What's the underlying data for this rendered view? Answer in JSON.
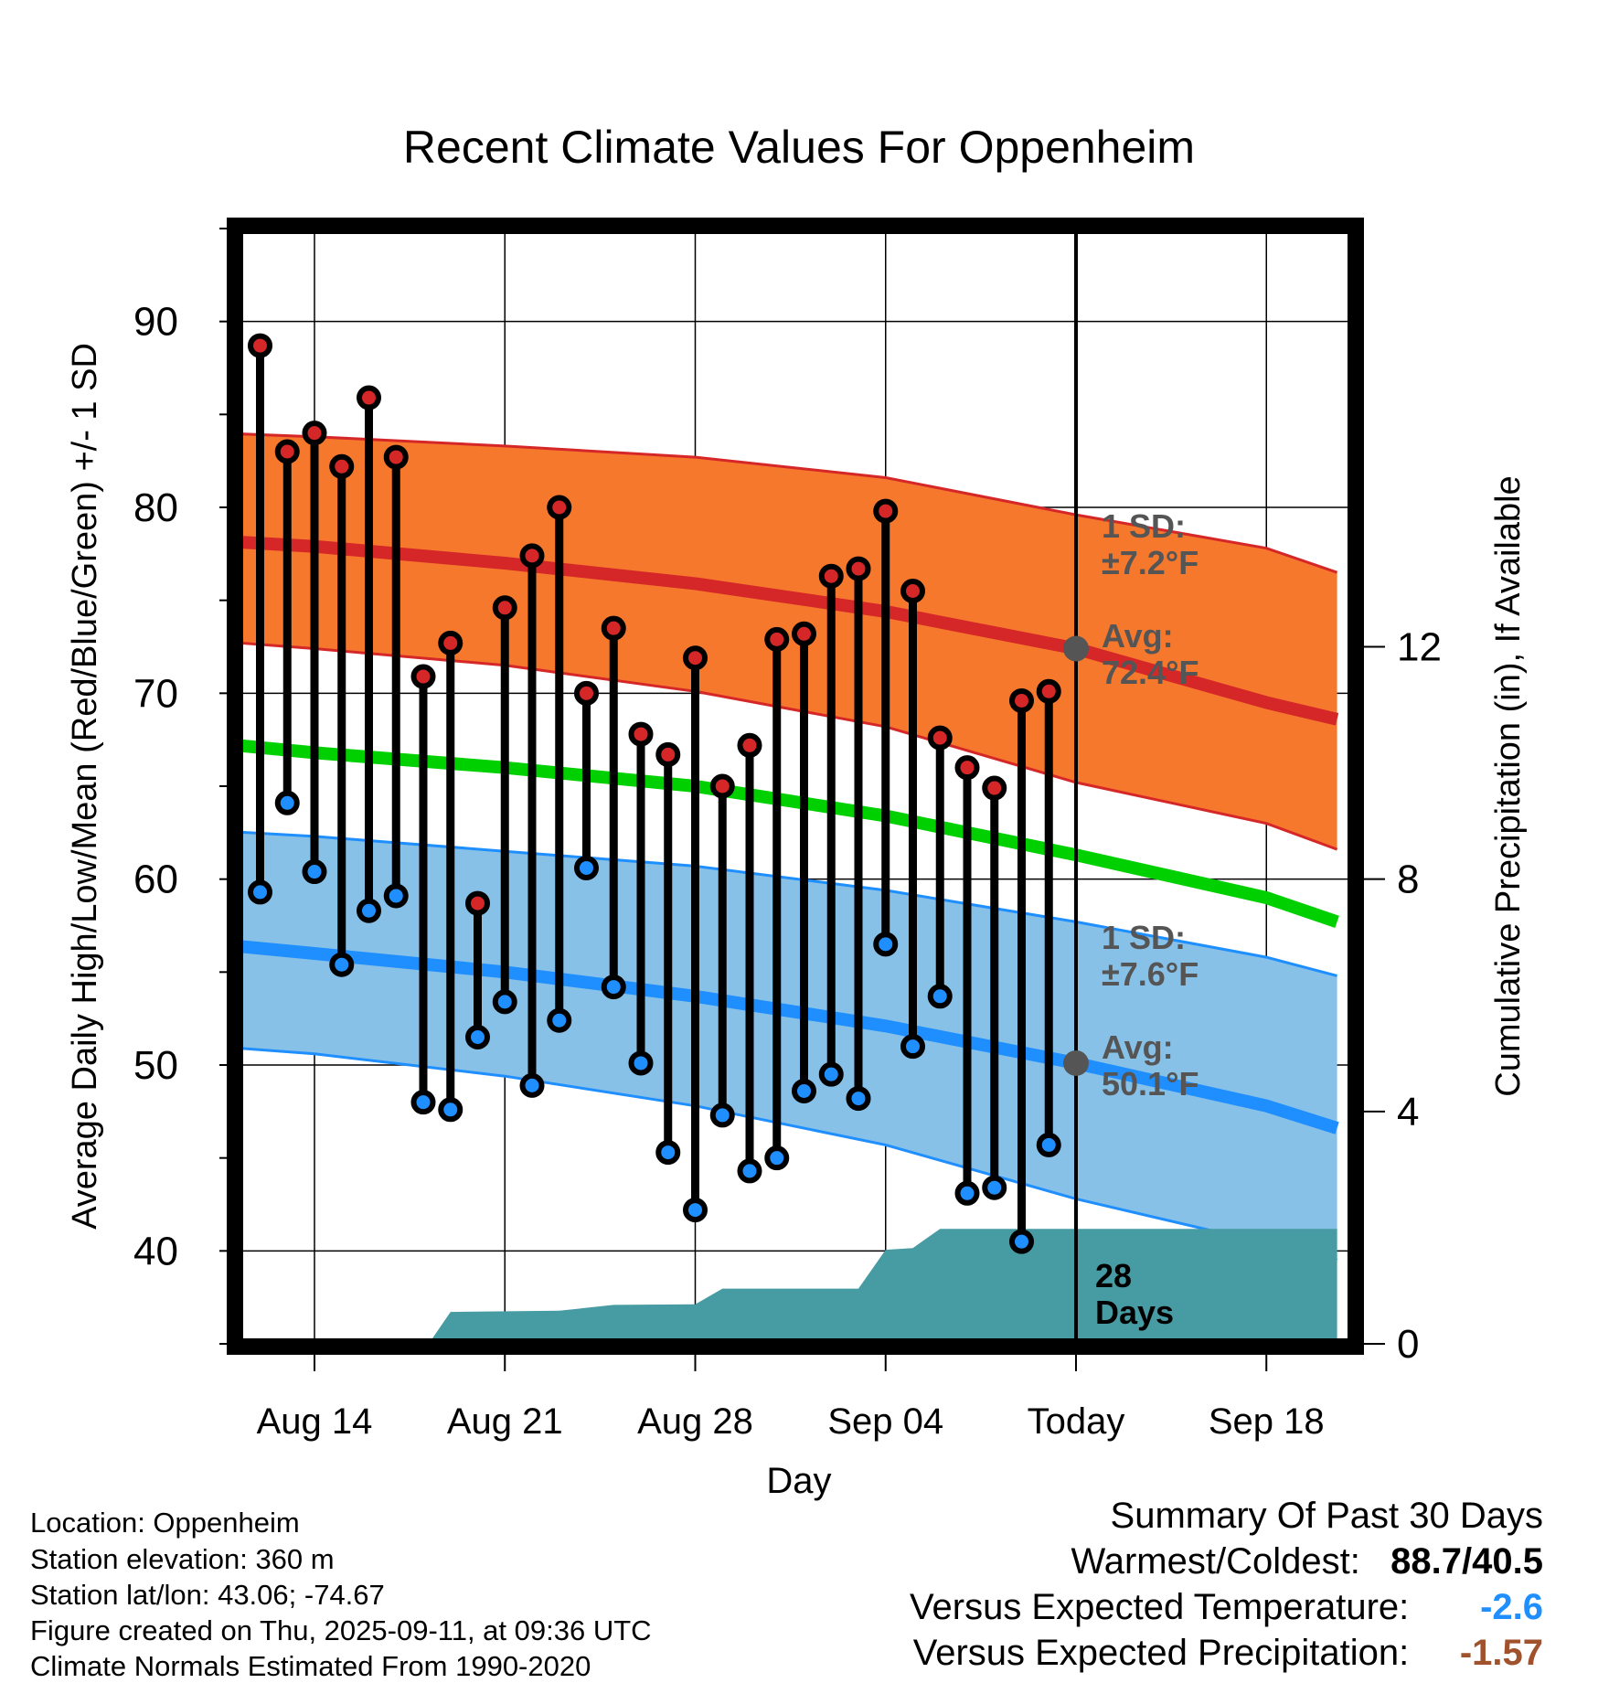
{
  "page": {
    "title": "Recent Climate Values For Oppenheim",
    "x_axis_label": "Day",
    "y_axis_left_label": "Average Daily High/Low/Mean (Red/Blue/Green) +/- 1 SD",
    "y_axis_right_label": "Cumulative Precipitation (in), If Available"
  },
  "info": {
    "location": "Location: Oppenheim",
    "elevation": "Station elevation: 360 m",
    "latlon": "Station lat/lon: 43.06; -74.67",
    "created": "Figure created on Thu, 2025-09-11, at 09:36 UTC",
    "normals": "Climate Normals Estimated From 1990-2020"
  },
  "summary": {
    "heading": "Summary Of Past 30 Days",
    "warm_cold_label": "Warmest/Coldest:",
    "warm_cold_value": "88.7/40.5",
    "temp_label": "Versus Expected Temperature:",
    "temp_value": "-2.6",
    "temp_color": "#1f8fff",
    "precip_label": "Versus Expected Precipitation:",
    "precip_value": "-1.57",
    "precip_color": "#a0522d"
  },
  "chart_data": {
    "type": "line",
    "x_range_days": [
      -32,
      7
    ],
    "x_ticks": [
      {
        "day": -28,
        "label": "Aug 14"
      },
      {
        "day": -21,
        "label": "Aug 21"
      },
      {
        "day": -14,
        "label": "Aug 28"
      },
      {
        "day": -7,
        "label": "Sep 04"
      },
      {
        "day": 0,
        "label": "Today"
      },
      {
        "day": 7,
        "label": "Sep 18"
      }
    ],
    "ylim_left": [
      35,
      95
    ],
    "y_ticks_left": [
      40,
      50,
      60,
      70,
      80,
      90
    ],
    "ylim_right": [
      0,
      19.2
    ],
    "y_ticks_right": [
      0,
      4,
      8,
      12
    ],
    "grid": true,
    "today_day": 0,
    "daily_high": [
      {
        "day": -30,
        "value": 88.7
      },
      {
        "day": -29,
        "value": 83.0
      },
      {
        "day": -28,
        "value": 84.0
      },
      {
        "day": -27,
        "value": 82.2
      },
      {
        "day": -26,
        "value": 85.9
      },
      {
        "day": -25,
        "value": 82.7
      },
      {
        "day": -24,
        "value": 70.9
      },
      {
        "day": -23,
        "value": 72.7
      },
      {
        "day": -22,
        "value": 58.7
      },
      {
        "day": -21,
        "value": 74.6
      },
      {
        "day": -20,
        "value": 77.4
      },
      {
        "day": -19,
        "value": 80.0
      },
      {
        "day": -18,
        "value": 70.0
      },
      {
        "day": -17,
        "value": 73.5
      },
      {
        "day": -16,
        "value": 67.8
      },
      {
        "day": -15,
        "value": 66.7
      },
      {
        "day": -14,
        "value": 71.9
      },
      {
        "day": -13,
        "value": 65.0
      },
      {
        "day": -12,
        "value": 67.2
      },
      {
        "day": -11,
        "value": 72.9
      },
      {
        "day": -10,
        "value": 73.2
      },
      {
        "day": -9,
        "value": 76.3
      },
      {
        "day": -8,
        "value": 76.7
      },
      {
        "day": -7,
        "value": 79.8
      },
      {
        "day": -6,
        "value": 75.5
      },
      {
        "day": -5,
        "value": 67.6
      },
      {
        "day": -4,
        "value": 66.0
      },
      {
        "day": -3,
        "value": 64.9
      },
      {
        "day": -2,
        "value": 69.6
      },
      {
        "day": -1,
        "value": 70.1
      }
    ],
    "daily_low": [
      {
        "day": -30,
        "value": 59.3
      },
      {
        "day": -29,
        "value": 64.1
      },
      {
        "day": -28,
        "value": 60.4
      },
      {
        "day": -27,
        "value": 55.4
      },
      {
        "day": -26,
        "value": 58.3
      },
      {
        "day": -25,
        "value": 59.1
      },
      {
        "day": -24,
        "value": 48.0
      },
      {
        "day": -23,
        "value": 47.6
      },
      {
        "day": -22,
        "value": 51.5
      },
      {
        "day": -21,
        "value": 53.4
      },
      {
        "day": -20,
        "value": 48.9
      },
      {
        "day": -19,
        "value": 52.4
      },
      {
        "day": -18,
        "value": 60.6
      },
      {
        "day": -17,
        "value": 54.2
      },
      {
        "day": -16,
        "value": 50.1
      },
      {
        "day": -15,
        "value": 45.3
      },
      {
        "day": -14,
        "value": 42.2
      },
      {
        "day": -13,
        "value": 47.3
      },
      {
        "day": -12,
        "value": 44.3
      },
      {
        "day": -11,
        "value": 45.0
      },
      {
        "day": -10,
        "value": 48.6
      },
      {
        "day": -9,
        "value": 49.5
      },
      {
        "day": -8,
        "value": 48.2
      },
      {
        "day": -7,
        "value": 56.5
      },
      {
        "day": -6,
        "value": 51.0
      },
      {
        "day": -5,
        "value": 53.7
      },
      {
        "day": -4,
        "value": 43.1
      },
      {
        "day": -3,
        "value": 43.4
      },
      {
        "day": -2,
        "value": 40.5
      },
      {
        "day": -1,
        "value": 45.7
      }
    ],
    "normal_high": [
      {
        "day": -31.6,
        "value": 78.2
      },
      {
        "day": -28,
        "value": 77.9
      },
      {
        "day": -21,
        "value": 77.0
      },
      {
        "day": -14,
        "value": 75.9
      },
      {
        "day": -7,
        "value": 74.4
      },
      {
        "day": 0,
        "value": 72.4
      },
      {
        "day": 7,
        "value": 69.5
      },
      {
        "day": 9.6,
        "value": 68.6
      }
    ],
    "normal_high_upper": [
      {
        "day": -31.6,
        "value": 84.0
      },
      {
        "day": -28,
        "value": 83.8
      },
      {
        "day": -21,
        "value": 83.3
      },
      {
        "day": -14,
        "value": 82.7
      },
      {
        "day": -7,
        "value": 81.6
      },
      {
        "day": 0,
        "value": 79.6
      },
      {
        "day": 7,
        "value": 77.8
      },
      {
        "day": 9.6,
        "value": 76.5
      }
    ],
    "normal_high_lower": [
      {
        "day": -31.6,
        "value": 72.8
      },
      {
        "day": -28,
        "value": 72.4
      },
      {
        "day": -21,
        "value": 71.5
      },
      {
        "day": -14,
        "value": 70.1
      },
      {
        "day": -7,
        "value": 68.2
      },
      {
        "day": 0,
        "value": 65.2
      },
      {
        "day": 7,
        "value": 63.0
      },
      {
        "day": 9.6,
        "value": 61.6
      }
    ],
    "normal_mean": [
      {
        "day": -31.6,
        "value": 67.3
      },
      {
        "day": -28,
        "value": 66.8
      },
      {
        "day": -21,
        "value": 66.0
      },
      {
        "day": -14,
        "value": 65.0
      },
      {
        "day": -7,
        "value": 63.4
      },
      {
        "day": 0,
        "value": 61.3
      },
      {
        "day": 7,
        "value": 59.0
      },
      {
        "day": 9.6,
        "value": 57.7
      }
    ],
    "normal_low": [
      {
        "day": -31.6,
        "value": 56.5
      },
      {
        "day": -28,
        "value": 56.0
      },
      {
        "day": -21,
        "value": 55.0
      },
      {
        "day": -14,
        "value": 53.7
      },
      {
        "day": -7,
        "value": 52.1
      },
      {
        "day": 0,
        "value": 50.1
      },
      {
        "day": 7,
        "value": 47.8
      },
      {
        "day": 9.6,
        "value": 46.6
      }
    ],
    "normal_low_upper": [
      {
        "day": -31.6,
        "value": 62.6
      },
      {
        "day": -28,
        "value": 62.3
      },
      {
        "day": -21,
        "value": 61.5
      },
      {
        "day": -14,
        "value": 60.7
      },
      {
        "day": -7,
        "value": 59.4
      },
      {
        "day": 0,
        "value": 57.7
      },
      {
        "day": 7,
        "value": 55.8
      },
      {
        "day": 9.6,
        "value": 54.8
      }
    ],
    "normal_low_lower": [
      {
        "day": -31.6,
        "value": 51.0
      },
      {
        "day": -28,
        "value": 50.6
      },
      {
        "day": -21,
        "value": 49.4
      },
      {
        "day": -14,
        "value": 47.8
      },
      {
        "day": -7,
        "value": 45.7
      },
      {
        "day": 0,
        "value": 42.8
      },
      {
        "day": 7,
        "value": 40.4
      },
      {
        "day": 9.6,
        "value": 39.5
      }
    ],
    "cumulative_precip": [
      {
        "day": -23.8,
        "value": 0.0
      },
      {
        "day": -23,
        "value": 0.55
      },
      {
        "day": -19,
        "value": 0.57
      },
      {
        "day": -17,
        "value": 0.67
      },
      {
        "day": -14,
        "value": 0.68
      },
      {
        "day": -13,
        "value": 0.95
      },
      {
        "day": -10,
        "value": 0.95
      },
      {
        "day": -8,
        "value": 0.95
      },
      {
        "day": -7,
        "value": 1.62
      },
      {
        "day": -6,
        "value": 1.65
      },
      {
        "day": -5,
        "value": 1.98
      },
      {
        "day": 0,
        "value": 1.98
      },
      {
        "day": 9.6,
        "value": 1.98
      }
    ],
    "annotations": {
      "high_sd": "1 SD:\n±7.2°F",
      "high_avg": "Avg:\n72.4°F",
      "low_sd": "1 SD:\n±7.6°F",
      "low_avg": "Avg:\n50.1°F",
      "precip_days": "28\nDays"
    },
    "colors": {
      "high_band": "#f5782d",
      "high_line": "#d62728",
      "low_band": "#87c1e8",
      "low_line": "#1f8fff",
      "mean_line": "#00d000",
      "precip_fill": "#479ba3",
      "high_dot": "#d62728",
      "low_dot": "#1f8fff",
      "annotation_text": "#555555"
    }
  }
}
